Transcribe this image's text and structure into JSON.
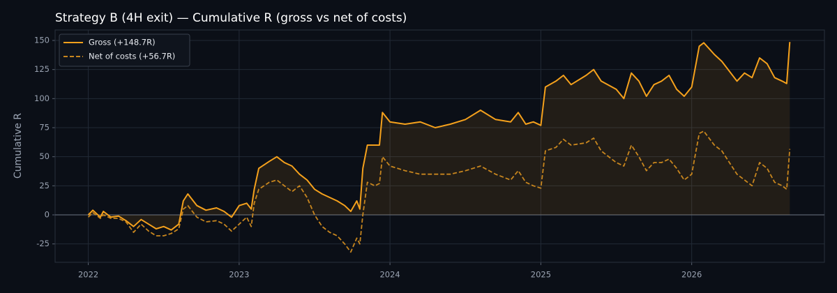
{
  "chart_data": {
    "type": "line",
    "title": "Strategy B (4H exit) — Cumulative R (gross vs net of costs)",
    "ylabel": "Cumulative R",
    "x": [
      2022.0,
      2022.03,
      2022.08,
      2022.1,
      2022.15,
      2022.2,
      2022.25,
      2022.3,
      2022.35,
      2022.4,
      2022.45,
      2022.5,
      2022.55,
      2022.6,
      2022.63,
      2022.66,
      2022.72,
      2022.78,
      2022.85,
      2022.9,
      2022.95,
      2023.0,
      2023.05,
      2023.08,
      2023.1,
      2023.13,
      2023.2,
      2023.25,
      2023.3,
      2023.35,
      2023.4,
      2023.45,
      2023.5,
      2023.55,
      2023.6,
      2023.65,
      2023.7,
      2023.74,
      2023.78,
      2023.8,
      2023.82,
      2023.85,
      2023.9,
      2023.93,
      2023.95,
      2024.0,
      2024.1,
      2024.2,
      2024.3,
      2024.4,
      2024.5,
      2024.6,
      2024.7,
      2024.8,
      2024.85,
      2024.9,
      2024.95,
      2025.0,
      2025.03,
      2025.1,
      2025.15,
      2025.2,
      2025.3,
      2025.35,
      2025.4,
      2025.5,
      2025.55,
      2025.6,
      2025.65,
      2025.7,
      2025.75,
      2025.8,
      2025.85,
      2025.9,
      2025.95,
      2026.0,
      2026.05,
      2026.08,
      2026.15,
      2026.2,
      2026.3,
      2026.35,
      2026.4,
      2026.45,
      2026.5,
      2026.55,
      2026.6,
      2026.63,
      2026.65
    ],
    "series": [
      {
        "name": "Gross (+148.7R)",
        "color": "#f5a11c",
        "linestyle": "solid",
        "fill": true,
        "values": [
          0,
          4,
          -2,
          3,
          -2,
          -1,
          -5,
          -10,
          -4,
          -8,
          -12,
          -10,
          -13,
          -8,
          12,
          18,
          8,
          4,
          6,
          3,
          -2,
          8,
          10,
          5,
          22,
          40,
          46,
          50,
          45,
          42,
          35,
          30,
          22,
          18,
          15,
          12,
          8,
          3,
          12,
          5,
          40,
          60,
          60,
          60,
          88,
          80,
          78,
          80,
          75,
          78,
          82,
          90,
          82,
          80,
          88,
          78,
          80,
          77,
          110,
          115,
          120,
          112,
          120,
          125,
          115,
          108,
          100,
          122,
          115,
          102,
          112,
          115,
          120,
          108,
          102,
          110,
          145,
          148,
          138,
          132,
          115,
          122,
          118,
          135,
          130,
          118,
          115,
          113,
          148.7
        ]
      },
      {
        "name": "Net of costs (+56.7R)",
        "color": "#c8861e",
        "linestyle": "dashed",
        "fill": false,
        "values": [
          -2,
          2,
          -3,
          0,
          -3,
          -3,
          -6,
          -15,
          -8,
          -14,
          -18,
          -18,
          -16,
          -12,
          5,
          8,
          -2,
          -6,
          -5,
          -8,
          -14,
          -8,
          -2,
          -10,
          10,
          22,
          28,
          30,
          25,
          20,
          25,
          15,
          0,
          -10,
          -15,
          -18,
          -25,
          -32,
          -20,
          -25,
          0,
          28,
          25,
          27,
          50,
          42,
          38,
          35,
          35,
          35,
          38,
          42,
          35,
          30,
          38,
          28,
          25,
          23,
          55,
          58,
          65,
          60,
          62,
          66,
          55,
          45,
          42,
          60,
          50,
          38,
          45,
          45,
          48,
          40,
          30,
          35,
          70,
          72,
          60,
          55,
          35,
          30,
          25,
          45,
          40,
          28,
          25,
          22,
          56.7
        ]
      }
    ],
    "xlim": [
      2021.78,
      2026.88
    ],
    "xticks": [
      2022,
      2023,
      2024,
      2025,
      2026
    ],
    "ylim": [
      -40.8,
      159
    ],
    "yticks": [
      -25,
      0,
      25,
      50,
      75,
      100,
      125,
      150
    ],
    "grid": true,
    "legend": "upper left"
  }
}
